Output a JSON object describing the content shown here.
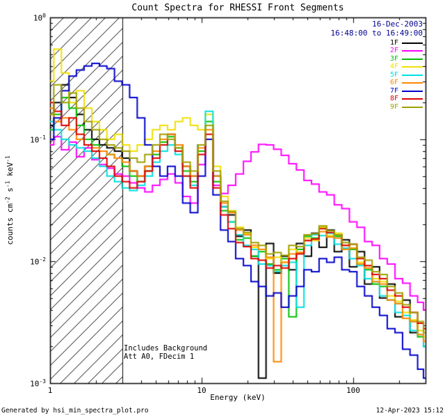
{
  "title": "Count Spectra for RHESSI Front Segments",
  "annotations": {
    "date": "16-Dec-2003",
    "time_range": "16:48:00 to 16:49:00",
    "note_line1": "Includes Background",
    "note_line2": "Att A0, FDecim 1",
    "footer_left": "Generated by hsi_min_spectra_plot.pro",
    "footer_right": "12-Apr-2023 15:12"
  },
  "axis": {
    "xlabel": "Energy (keV)",
    "ylabel_parts": {
      "p1": "counts cm",
      "s1": "-2",
      "p2": " s",
      "s2": "-1",
      "p3": " keV",
      "s3": "-1"
    },
    "xticks": [
      "1",
      "10",
      "100"
    ],
    "yticks": [
      {
        "base": "10",
        "exp": "0"
      },
      {
        "base": "10",
        "exp": "-1"
      },
      {
        "base": "10",
        "exp": "-2"
      },
      {
        "base": "10",
        "exp": "-3"
      }
    ]
  },
  "colors": {
    "background": "#ffffff",
    "axis": "#000000",
    "date_text": "#000090"
  },
  "chart_data": {
    "type": "line",
    "title": "Count Spectra for RHESSI Front Segments",
    "xlabel": "Energy (keV)",
    "ylabel": "counts cm^-2 s^-1 keV^-1",
    "x_scale": "log",
    "y_scale": "log",
    "xlim": [
      1,
      300
    ],
    "ylim": [
      0.001,
      1
    ],
    "grid": false,
    "legend_position": "top-right",
    "hatch_region": {
      "xmin": 1,
      "xmax": 3
    },
    "x": [
      1.0,
      1.12,
      1.26,
      1.41,
      1.58,
      1.78,
      2.0,
      2.24,
      2.51,
      2.82,
      3.16,
      3.55,
      3.98,
      4.47,
      5.01,
      5.62,
      6.31,
      7.08,
      7.94,
      8.91,
      10.0,
      11.2,
      12.6,
      14.1,
      15.8,
      17.8,
      20.0,
      22.4,
      25.1,
      28.2,
      31.6,
      35.5,
      39.8,
      44.7,
      50.1,
      56.2,
      63.1,
      70.8,
      79.4,
      89.1,
      100,
      112,
      126,
      141,
      158,
      178,
      200,
      224,
      251,
      282,
      300
    ],
    "series": [
      {
        "name": "1F",
        "color": "#000000",
        "values": [
          0.13,
          0.2,
          0.28,
          0.22,
          0.16,
          0.12,
          0.1,
          0.09,
          0.085,
          0.08,
          0.07,
          0.055,
          0.05,
          0.06,
          0.08,
          0.1,
          0.11,
          0.09,
          0.06,
          0.05,
          0.09,
          0.13,
          0.05,
          0.028,
          0.024,
          0.016,
          0.018,
          0.011,
          0.0011,
          0.014,
          0.008,
          0.011,
          0.0085,
          0.014,
          0.011,
          0.017,
          0.013,
          0.018,
          0.012,
          0.015,
          0.009,
          0.012,
          0.0065,
          0.009,
          0.005,
          0.0065,
          0.0035,
          0.0048,
          0.0026,
          0.0031,
          0.002
        ]
      },
      {
        "name": "2F",
        "color": "#ff00ff",
        "values": [
          0.09,
          0.105,
          0.082,
          0.095,
          0.072,
          0.085,
          0.068,
          0.062,
          0.058,
          0.052,
          0.05,
          0.044,
          0.04,
          0.037,
          0.042,
          0.047,
          0.052,
          0.044,
          0.034,
          0.03,
          0.062,
          0.1,
          0.042,
          0.036,
          0.042,
          0.052,
          0.066,
          0.079,
          0.091,
          0.09,
          0.083,
          0.074,
          0.063,
          0.056,
          0.046,
          0.043,
          0.037,
          0.035,
          0.029,
          0.027,
          0.021,
          0.019,
          0.0145,
          0.0135,
          0.0105,
          0.0095,
          0.0072,
          0.0066,
          0.0052,
          0.0046,
          0.004
        ]
      },
      {
        "name": "3F",
        "color": "#00c000",
        "values": [
          0.12,
          0.16,
          0.22,
          0.18,
          0.13,
          0.1,
          0.09,
          0.08,
          0.075,
          0.07,
          0.06,
          0.05,
          0.045,
          0.055,
          0.075,
          0.095,
          0.105,
          0.085,
          0.055,
          0.045,
          0.08,
          0.14,
          0.045,
          0.026,
          0.021,
          0.015,
          0.0155,
          0.011,
          0.012,
          0.0095,
          0.0085,
          0.0105,
          0.0035,
          0.0125,
          0.016,
          0.0155,
          0.019,
          0.016,
          0.016,
          0.0125,
          0.0125,
          0.0095,
          0.0085,
          0.0065,
          0.0062,
          0.0048,
          0.0045,
          0.0034,
          0.0032,
          0.0024,
          0.0022
        ]
      },
      {
        "name": "4F",
        "color": "#f0e000",
        "values": [
          0.3,
          0.55,
          0.35,
          0.2,
          0.25,
          0.18,
          0.14,
          0.12,
          0.1,
          0.11,
          0.09,
          0.08,
          0.09,
          0.1,
          0.12,
          0.13,
          0.12,
          0.14,
          0.15,
          0.13,
          0.12,
          0.16,
          0.06,
          0.034,
          0.026,
          0.019,
          0.017,
          0.013,
          0.0125,
          0.0105,
          0.0108,
          0.0098,
          0.0125,
          0.0118,
          0.0155,
          0.0148,
          0.019,
          0.0162,
          0.017,
          0.0135,
          0.0128,
          0.0098,
          0.0092,
          0.0072,
          0.0068,
          0.0052,
          0.0047,
          0.0038,
          0.0033,
          0.0027,
          0.0024
        ]
      },
      {
        "name": "5F",
        "color": "#00e0e0",
        "values": [
          0.14,
          0.12,
          0.1,
          0.09,
          0.085,
          0.08,
          0.07,
          0.06,
          0.05,
          0.045,
          0.04,
          0.038,
          0.042,
          0.05,
          0.065,
          0.08,
          0.09,
          0.075,
          0.05,
          0.042,
          0.09,
          0.17,
          0.05,
          0.028,
          0.021,
          0.0165,
          0.0135,
          0.0125,
          0.0095,
          0.0092,
          0.0082,
          0.0092,
          0.0098,
          0.0042,
          0.0135,
          0.0165,
          0.0162,
          0.017,
          0.0138,
          0.0128,
          0.0105,
          0.0092,
          0.0072,
          0.0068,
          0.0052,
          0.0048,
          0.0038,
          0.0036,
          0.0027,
          0.0025,
          0.002
        ]
      },
      {
        "name": "6F",
        "color": "#ff8800",
        "values": [
          0.18,
          0.14,
          0.15,
          0.12,
          0.1,
          0.09,
          0.085,
          0.08,
          0.075,
          0.07,
          0.065,
          0.055,
          0.05,
          0.06,
          0.08,
          0.1,
          0.11,
          0.09,
          0.06,
          0.05,
          0.085,
          0.12,
          0.05,
          0.03,
          0.025,
          0.018,
          0.0165,
          0.0135,
          0.0125,
          0.0108,
          0.0015,
          0.0098,
          0.0115,
          0.0118,
          0.0148,
          0.0152,
          0.0175,
          0.0158,
          0.0155,
          0.0125,
          0.0128,
          0.0095,
          0.0088,
          0.0068,
          0.0065,
          0.0048,
          0.0045,
          0.0034,
          0.0032,
          0.0025,
          0.0022
        ]
      },
      {
        "name": "7F",
        "color": "#0000cc",
        "values": [
          0.1,
          0.15,
          0.25,
          0.33,
          0.37,
          0.4,
          0.42,
          0.4,
          0.38,
          0.3,
          0.28,
          0.22,
          0.15,
          0.09,
          0.06,
          0.05,
          0.06,
          0.05,
          0.03,
          0.025,
          0.05,
          0.1,
          0.035,
          0.018,
          0.0145,
          0.0105,
          0.0092,
          0.0068,
          0.0062,
          0.0052,
          0.0055,
          0.0042,
          0.0052,
          0.0062,
          0.0085,
          0.0082,
          0.0105,
          0.0098,
          0.0108,
          0.0085,
          0.0082,
          0.0062,
          0.0052,
          0.0042,
          0.0036,
          0.0028,
          0.0026,
          0.0019,
          0.0017,
          0.0013,
          0.0011
        ]
      },
      {
        "name": "8F",
        "color": "#dd0000",
        "values": [
          0.2,
          0.17,
          0.13,
          0.15,
          0.11,
          0.09,
          0.08,
          0.07,
          0.06,
          0.05,
          0.045,
          0.04,
          0.045,
          0.055,
          0.07,
          0.09,
          0.1,
          0.08,
          0.05,
          0.04,
          0.075,
          0.11,
          0.04,
          0.024,
          0.0185,
          0.0142,
          0.0132,
          0.0105,
          0.0102,
          0.0088,
          0.0092,
          0.0088,
          0.0105,
          0.0115,
          0.0148,
          0.0152,
          0.0185,
          0.0172,
          0.0165,
          0.0135,
          0.0138,
          0.0105,
          0.0092,
          0.0078,
          0.0072,
          0.0058,
          0.0052,
          0.0042,
          0.0038,
          0.0031,
          0.0028
        ]
      },
      {
        "name": "9F",
        "color": "#a0a000",
        "values": [
          0.16,
          0.28,
          0.2,
          0.24,
          0.18,
          0.14,
          0.12,
          0.1,
          0.09,
          0.085,
          0.08,
          0.07,
          0.065,
          0.075,
          0.09,
          0.11,
          0.1,
          0.085,
          0.065,
          0.055,
          0.09,
          0.13,
          0.055,
          0.031,
          0.0255,
          0.0185,
          0.0172,
          0.0142,
          0.0135,
          0.0115,
          0.0118,
          0.0112,
          0.0135,
          0.0132,
          0.0165,
          0.0168,
          0.0195,
          0.0178,
          0.0165,
          0.0142,
          0.0138,
          0.0108,
          0.0102,
          0.0082,
          0.0078,
          0.0062,
          0.0055,
          0.0044,
          0.0038,
          0.0032,
          0.0026
        ]
      }
    ]
  }
}
